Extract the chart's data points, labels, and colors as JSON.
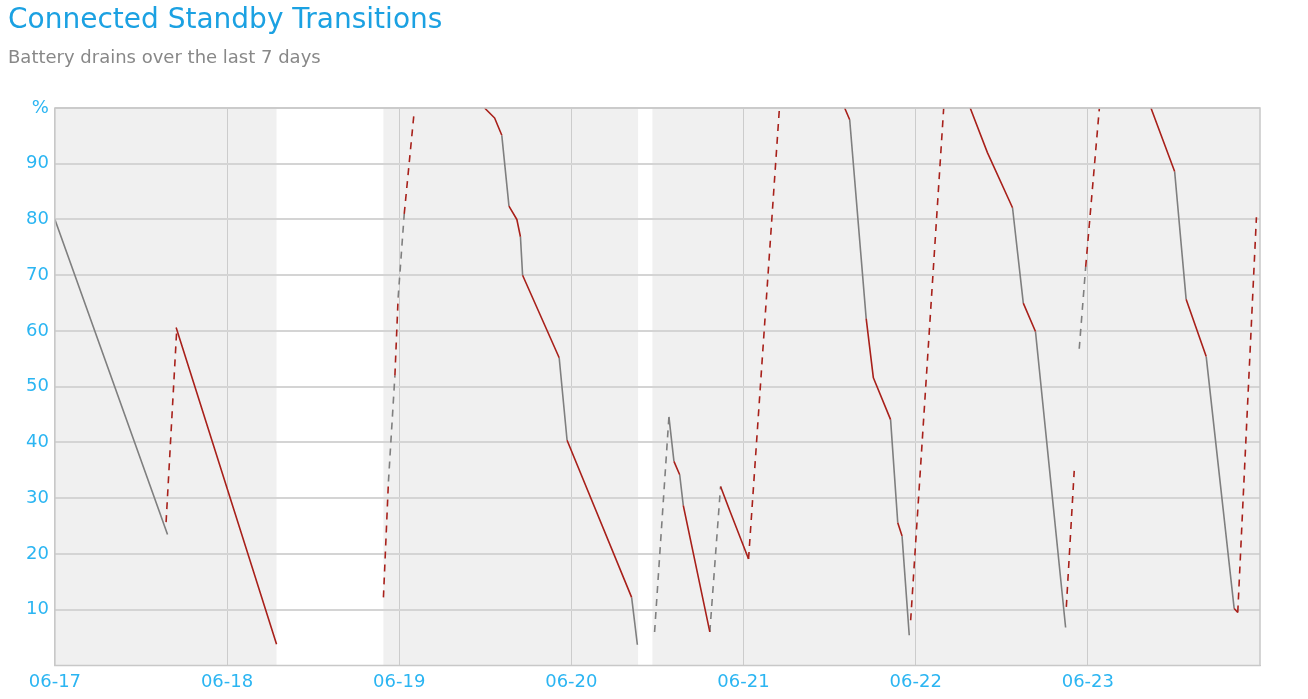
{
  "chart_data": {
    "type": "line",
    "title": "Connected Standby Transitions",
    "subtitle": "Battery drains over the last 7 days",
    "marker": "none",
    "grid": true,
    "xlim": [
      "--06-17",
      "--06-24"
    ],
    "xticks": [
      {
        "value": "--06-17",
        "label": "06-17"
      },
      {
        "value": "--06-18",
        "label": "06-18"
      },
      {
        "value": "--06-19",
        "label": "06-19"
      },
      {
        "value": "--06-20",
        "label": "06-20"
      },
      {
        "value": "--06-21",
        "label": "06-21"
      },
      {
        "value": "--06-22",
        "label": "06-22"
      },
      {
        "value": "--06-23",
        "label": "06-23"
      }
    ],
    "ylim": [
      0,
      100
    ],
    "yticks": [
      10,
      20,
      30,
      40,
      50,
      60,
      70,
      80,
      90,
      {
        "value": 100,
        "label": "%"
      }
    ],
    "bands": [
      {
        "axis": "x",
        "from": "--06-17",
        "to": "--06-18T06:54",
        "color": "#f0f0f0"
      },
      {
        "axis": "x",
        "from": "--06-18T21:48",
        "to": "--06-20T09:18",
        "color": "#f0f0f0"
      },
      {
        "axis": "x",
        "from": "--06-20T11:18",
        "to": "--06-24",
        "color": "#f0f0f0"
      }
    ],
    "series": [
      {
        "color": "#a8201a",
        "line_style": "solid",
        "x": [
          "--06-17T16:54",
          "--06-18T06:54",
          null,
          "--06-19T11:54",
          "--06-19T13:18",
          "--06-19T14:18",
          null,
          "--06-19T15:18",
          "--06-19T16:24",
          "--06-19T16:54",
          null,
          "--06-19T17:12",
          "--06-19T22:18",
          null,
          "--06-19T23:24",
          "--06-20T08:24",
          null,
          "--06-20T14:18",
          "--06-20T15:06",
          null,
          "--06-20T15:36",
          "--06-20T19:18",
          null,
          "--06-20T20:48",
          "--06-20T22:06",
          "--06-21T00:42",
          null,
          "--06-21T14:06",
          "--06-21T14:48",
          null,
          "--06-21T17:06",
          "--06-21T18:06",
          "--06-21T20:30",
          null,
          "--06-21T21:30",
          "--06-21T22:06",
          null,
          "--06-22T07:36",
          "--06-22T10:00",
          "--06-22T13:30",
          null,
          "--06-22T15:00",
          "--06-22T16:42",
          null,
          "--06-23T08:48",
          "--06-23T12:06",
          null,
          "--06-23T13:42",
          "--06-23T16:30",
          null,
          "--06-23T20:24",
          "--06-23T20:54"
        ],
        "values": [
          60.6,
          3.8,
          null,
          100,
          98.2,
          95.1,
          null,
          82.4,
          80,
          76.9,
          null,
          70,
          55.2,
          null,
          40.4,
          12.2,
          null,
          36.6,
          34.2,
          null,
          28.7,
          6,
          null,
          32.1,
          27.7,
          19.1,
          null,
          100,
          97.9,
          null,
          62.2,
          51.6,
          44.1,
          null,
          25.6,
          23.2,
          null,
          100,
          92,
          82.1,
          null,
          65,
          59.9,
          null,
          100,
          88.6,
          null,
          65.7,
          55.4,
          null,
          10.2,
          9.5
        ]
      },
      {
        "color": "#7f7f7f",
        "line_style": "solid",
        "x": [
          "--06-17T00:00",
          "--06-17T15:42",
          null,
          "--06-19T14:18",
          "--06-19T15:18",
          null,
          "--06-19T16:54",
          "--06-19T17:12",
          null,
          "--06-19T22:18",
          "--06-19T23:24",
          null,
          "--06-20T08:24",
          "--06-20T09:12",
          null,
          "--06-20T13:36",
          "--06-20T14:18",
          null,
          "--06-20T15:06",
          "--06-20T15:36",
          null,
          "--06-21T14:48",
          "--06-21T17:06",
          null,
          "--06-21T20:30",
          "--06-21T21:30",
          null,
          "--06-21T22:06",
          "--06-21T23:06",
          null,
          "--06-22T13:30",
          "--06-22T15:00",
          null,
          "--06-22T16:42",
          "--06-22T20:54",
          null,
          "--06-23T12:06",
          "--06-23T13:42",
          null,
          "--06-23T16:30",
          "--06-23T20:24"
        ],
        "values": [
          80,
          23.5,
          null,
          95.1,
          82.4,
          null,
          76.9,
          70,
          null,
          55.2,
          40.4,
          null,
          12.2,
          3.7,
          null,
          44.6,
          36.6,
          null,
          34.2,
          28.7,
          null,
          97.9,
          62.2,
          null,
          44.1,
          25.6,
          null,
          23.2,
          5.4,
          null,
          82.1,
          65,
          null,
          59.9,
          6.8,
          null,
          88.6,
          65.7,
          null,
          55.4,
          10.2
        ]
      },
      {
        "color": "#a8201a",
        "line_style": "dashed",
        "x": [
          "--06-17T15:30",
          "--06-17T17:00",
          null,
          "--06-18T21:48",
          "--06-18T22:30",
          null,
          "--06-18T23:24",
          "--06-18T23:51",
          null,
          "--06-19T00:42",
          "--06-19T02:06",
          null,
          "--06-21T00:42",
          "--06-21T05:00",
          null,
          "--06-21T23:18",
          "--06-22T03:54",
          null,
          "--06-22T21:00",
          "--06-22T22:06",
          null,
          "--06-22T23:42",
          "--06-23T01:36",
          null,
          "--06-23T20:54",
          "--06-23T23:30"
        ],
        "values": [
          25.7,
          60.6,
          null,
          12.2,
          33,
          null,
          52,
          66,
          null,
          81,
          99.5,
          null,
          19.1,
          99.9,
          null,
          8.1,
          99.9,
          null,
          10.5,
          34.9,
          null,
          71.5,
          99.9,
          null,
          9.5,
          80.4
        ]
      },
      {
        "color": "#7f7f7f",
        "line_style": "dashed",
        "x": [
          "--06-18T22:30",
          "--06-18T23:24",
          null,
          "--06-18T23:51",
          "--06-19T00:42",
          null,
          "--06-20T11:36",
          "--06-20T13:36",
          null,
          "--06-20T19:18",
          "--06-20T20:48",
          null,
          "--06-22T22:48",
          "--06-22T23:42"
        ],
        "values": [
          33,
          52,
          null,
          66,
          81,
          null,
          6,
          44.6,
          null,
          6,
          32.1,
          null,
          56.8,
          71.5
        ]
      }
    ]
  }
}
